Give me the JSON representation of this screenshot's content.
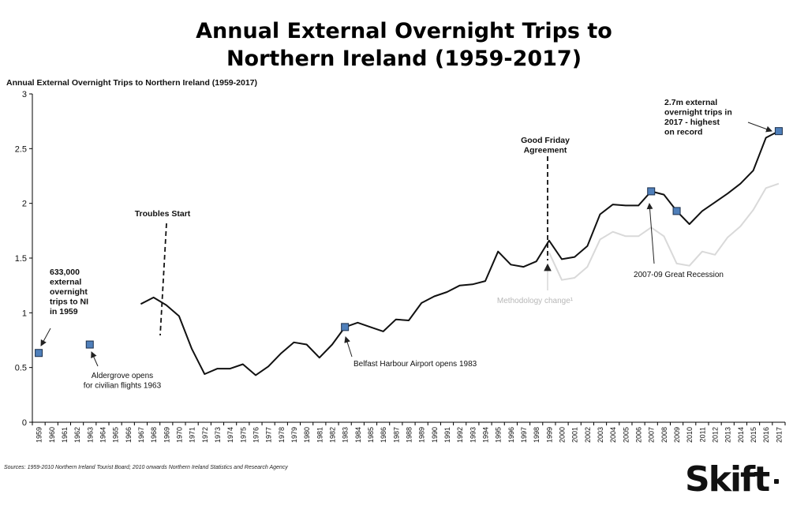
{
  "page_title": [
    "Annual External Overnight Trips to",
    "Northern Ireland (1959-2017)"
  ],
  "source": "Sources: 1959-2010 Northern Ireland Tourist Board; 2010 onwards Northern Ireland Statistics and Research Agency",
  "logo": "Skift",
  "colors": {
    "main_line": "#111111",
    "methodology_line": "#d9d9d9",
    "marker_fill": "#4f7fba",
    "marker_stroke": "#1c2f4a"
  },
  "chart_data": {
    "type": "line",
    "title": "Annual External Overnight Trips to Northern Ireland (1959-2017)",
    "xlabel": "",
    "ylabel": "",
    "ylim": [
      0,
      3
    ],
    "yticks": [
      "0",
      "0.5",
      "1",
      "1.5",
      "2",
      "2.5",
      "3"
    ],
    "grid": false,
    "categories": [
      "1959",
      "1960",
      "1961",
      "1962",
      "1963",
      "1964",
      "1965",
      "1966",
      "1967",
      "1968",
      "1969",
      "1970",
      "1971",
      "1972",
      "1973",
      "1974",
      "1975",
      "1976",
      "1977",
      "1978",
      "1979",
      "1980",
      "1981",
      "1982",
      "1983",
      "1984",
      "1985",
      "1986",
      "1987",
      "1988",
      "1989",
      "1990",
      "1991",
      "1992",
      "1993",
      "1994",
      "1995",
      "1996",
      "1997",
      "1998",
      "1999",
      "2000",
      "2001",
      "2002",
      "2003",
      "2004",
      "2005",
      "2006",
      "2007",
      "2008",
      "2009",
      "2010",
      "2011",
      "2012",
      "2013",
      "2014",
      "2015",
      "2016",
      "2017"
    ],
    "series": [
      {
        "role": "main",
        "values": [
          null,
          null,
          null,
          null,
          null,
          null,
          null,
          null,
          1.08,
          1.14,
          1.07,
          0.97,
          0.67,
          0.44,
          0.49,
          0.49,
          0.53,
          0.43,
          0.51,
          0.63,
          0.73,
          0.71,
          0.59,
          0.71,
          0.87,
          0.91,
          0.87,
          0.83,
          0.94,
          0.93,
          1.09,
          1.15,
          1.19,
          1.25,
          1.26,
          1.29,
          1.56,
          1.44,
          1.42,
          1.47,
          1.66,
          1.49,
          1.51,
          1.61,
          1.9,
          1.99,
          1.98,
          1.98,
          2.11,
          2.08,
          1.93,
          1.81,
          1.93,
          2.01,
          2.09,
          2.18,
          2.3,
          2.6,
          2.66
        ]
      },
      {
        "role": "methodology",
        "values": [
          null,
          null,
          null,
          null,
          null,
          null,
          null,
          null,
          null,
          null,
          null,
          null,
          null,
          null,
          null,
          null,
          null,
          null,
          null,
          null,
          null,
          null,
          null,
          null,
          null,
          null,
          null,
          null,
          null,
          null,
          null,
          null,
          null,
          null,
          null,
          null,
          null,
          null,
          null,
          null,
          1.55,
          1.3,
          1.32,
          1.42,
          1.67,
          1.74,
          1.7,
          1.7,
          1.78,
          1.7,
          1.45,
          1.43,
          1.56,
          1.53,
          1.69,
          1.79,
          1.94,
          2.14,
          2.18
        ]
      }
    ],
    "markers": [
      {
        "x": "1959",
        "y": 0.633
      },
      {
        "x": "1963",
        "y": 0.71
      },
      {
        "x": "1983",
        "y": 0.87
      },
      {
        "x": "2007",
        "y": 2.11
      },
      {
        "x": "2009",
        "y": 1.93
      },
      {
        "x": "2017",
        "y": 2.66
      }
    ],
    "annotations": [
      {
        "id": "first-year",
        "lines": [
          "633,000",
          "external",
          "overnight",
          "trips to NI",
          "in 1959"
        ],
        "bold": true
      },
      {
        "id": "aldergrove",
        "lines": [
          "Aldergrove opens",
          "for civilian flights 1963"
        ]
      },
      {
        "id": "troubles",
        "lines": [
          "Troubles Start"
        ],
        "bold": true
      },
      {
        "id": "belfast-harbour",
        "lines": [
          "Belfast Harbour Airport opens 1983"
        ]
      },
      {
        "id": "good-friday",
        "lines": [
          "Good Friday",
          "Agreement"
        ],
        "bold": true
      },
      {
        "id": "methodology",
        "lines": [
          "Methodology  change¹"
        ],
        "muted": true
      },
      {
        "id": "recession",
        "lines": [
          "2007-09 Great Recession"
        ]
      },
      {
        "id": "record",
        "lines": [
          "2.7m external",
          "overnight trips in",
          "2017 - highest",
          "on record"
        ],
        "bold": true
      }
    ]
  }
}
